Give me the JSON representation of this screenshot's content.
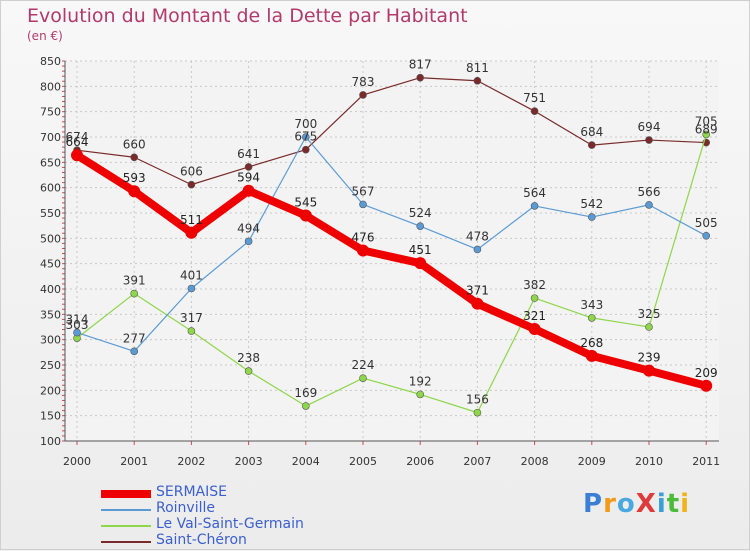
{
  "chart_data": {
    "type": "line",
    "title": "Evolution du Montant de la Dette par Habitant",
    "unit_label": "(en €)",
    "categories": [
      "2000",
      "2001",
      "2002",
      "2003",
      "2004",
      "2005",
      "2006",
      "2007",
      "2008",
      "2009",
      "2010",
      "2011"
    ],
    "ylim": [
      100,
      850
    ],
    "yticks": [
      100,
      150,
      200,
      250,
      300,
      350,
      400,
      450,
      500,
      550,
      600,
      650,
      700,
      750,
      800,
      850
    ],
    "grid": true,
    "legend_position": "bottom-left",
    "series": [
      {
        "name": "SERMAISE",
        "color": "#ee0000",
        "line_width": 8,
        "marker_radius": 6,
        "label_color": "#222222",
        "values": [
          664,
          593,
          511,
          594,
          545,
          476,
          451,
          371,
          321,
          268,
          239,
          209
        ]
      },
      {
        "name": "Roinville",
        "color": "#5b9bd5",
        "line_width": 1.2,
        "marker_radius": 3.5,
        "label_color": "#333333",
        "values": [
          314,
          277,
          401,
          494,
          700,
          567,
          524,
          478,
          564,
          542,
          566,
          505
        ]
      },
      {
        "name": "Le Val-Saint-Germain",
        "color": "#8ed64a",
        "line_width": 1.2,
        "marker_radius": 3.5,
        "label_color": "#333333",
        "values": [
          303,
          391,
          317,
          238,
          169,
          224,
          192,
          156,
          382,
          343,
          325,
          705
        ]
      },
      {
        "name": "Saint-Chéron",
        "color": "#7a2a2a",
        "line_width": 1.2,
        "marker_radius": 3.5,
        "label_color": "#333333",
        "values": [
          674,
          660,
          606,
          641,
          675,
          783,
          817,
          811,
          751,
          684,
          694,
          689
        ]
      }
    ]
  },
  "logo": {
    "text": "ProXiti"
  }
}
